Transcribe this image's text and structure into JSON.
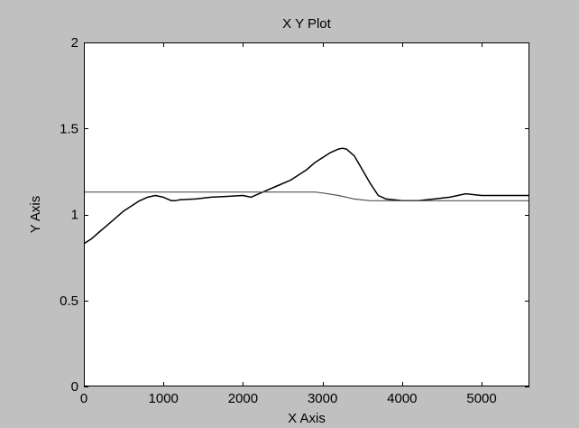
{
  "window": {
    "background": "#c0c0c0"
  },
  "chart_data": {
    "type": "line",
    "title": "X Y Plot",
    "xlabel": "X Axis",
    "ylabel": "Y Axis",
    "xlim": [
      0,
      5600
    ],
    "ylim": [
      0,
      2
    ],
    "xticks": [
      0,
      1000,
      2000,
      3000,
      4000,
      5000
    ],
    "yticks": [
      0,
      0.5,
      1,
      1.5,
      2
    ],
    "xtick_labels": [
      "0",
      "1000",
      "2000",
      "3000",
      "4000",
      "5000"
    ],
    "ytick_labels": [
      "0",
      "0.5",
      "1",
      "1.5",
      "2"
    ],
    "grid": false,
    "legend": "none",
    "plot_background": "#ffffff",
    "series": [
      {
        "color": "#000000",
        "x": [
          0,
          100,
          200,
          300,
          400,
          500,
          600,
          700,
          800,
          900,
          950,
          1000,
          1100,
          1150,
          1200,
          1400,
          1600,
          1800,
          2000,
          2100,
          2200,
          2400,
          2600,
          2800,
          2900,
          3000,
          3100,
          3200,
          3250,
          3300,
          3400,
          3500,
          3600,
          3700,
          3800,
          3900,
          4000,
          4200,
          4400,
          4600,
          4700,
          4800,
          5000,
          5200,
          5400,
          5600
        ],
        "y": [
          0.83,
          0.86,
          0.9,
          0.94,
          0.98,
          1.02,
          1.05,
          1.08,
          1.1,
          1.11,
          1.105,
          1.1,
          1.08,
          1.08,
          1.085,
          1.09,
          1.1,
          1.105,
          1.11,
          1.1,
          1.12,
          1.16,
          1.2,
          1.26,
          1.3,
          1.33,
          1.36,
          1.38,
          1.385,
          1.38,
          1.34,
          1.26,
          1.18,
          1.11,
          1.09,
          1.085,
          1.08,
          1.08,
          1.09,
          1.1,
          1.11,
          1.12,
          1.11,
          1.11,
          1.11,
          1.11
        ]
      },
      {
        "color": "#555555",
        "x": [
          0,
          1000,
          2000,
          2900,
          3000,
          3200,
          3400,
          3600,
          4000,
          5000,
          5600
        ],
        "y": [
          1.13,
          1.13,
          1.13,
          1.13,
          1.125,
          1.11,
          1.09,
          1.08,
          1.08,
          1.08,
          1.08
        ]
      }
    ]
  }
}
